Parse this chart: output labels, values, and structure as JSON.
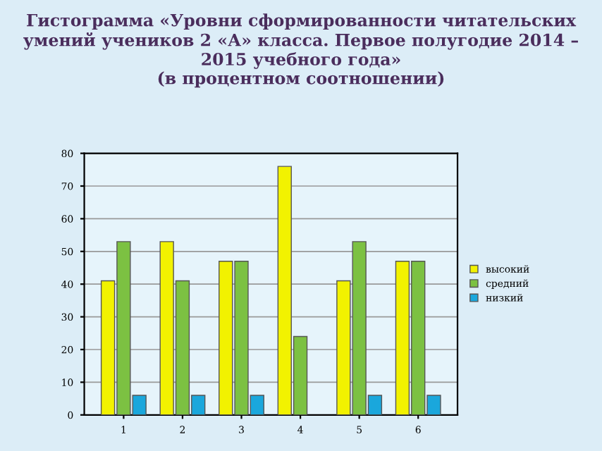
{
  "chart_data": {
    "type": "bar",
    "title": "Гистограмма «Уровни сформированности читательских умений учеников 2 «А» класса. Первое полугодие 2014 – 2015 учебного года»\n(в процентном соотношении)",
    "categories": [
      "1",
      "2",
      "3",
      "4",
      "5",
      "6"
    ],
    "series": [
      {
        "name": "высокий",
        "color": "#f2f200",
        "values": [
          41,
          53,
          47,
          76,
          41,
          47
        ]
      },
      {
        "name": "средний",
        "color": "#7cc142",
        "values": [
          53,
          41,
          47,
          24,
          53,
          47
        ]
      },
      {
        "name": "низкий",
        "color": "#1aa7dc",
        "values": [
          6,
          6,
          6,
          null,
          6,
          6
        ]
      }
    ],
    "ylim": [
      0,
      80
    ],
    "yticks": [
      0,
      10,
      20,
      30,
      40,
      50,
      60,
      70,
      80
    ],
    "grid": "y",
    "legend": "right"
  }
}
